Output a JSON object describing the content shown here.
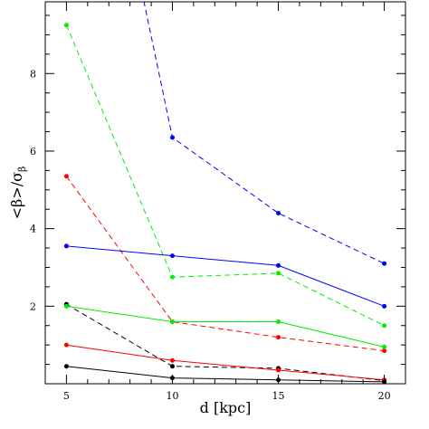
{
  "chart_data": {
    "type": "line",
    "xlabel": "d [kpc]",
    "ylabel": "<β>/σ_β",
    "xlim": [
      4,
      21
    ],
    "ylim": [
      0,
      9.85
    ],
    "x_ticks": [
      5,
      10,
      15,
      20
    ],
    "x_tick_labels": [
      "5",
      "10",
      "15",
      "20"
    ],
    "y_ticks": [
      2,
      4,
      6,
      8
    ],
    "y_tick_labels": [
      "2",
      "4",
      "6",
      "8"
    ],
    "grid": false,
    "legend": "none",
    "x": [
      5,
      10,
      15,
      20
    ],
    "series": [
      {
        "color": "#0000ff",
        "style": "dashed",
        "values": [
          null,
          6.35,
          4.4,
          3.1
        ],
        "extends_above": true
      },
      {
        "color": "#00ee00",
        "style": "dashed",
        "values": [
          9.25,
          2.75,
          2.85,
          1.5
        ]
      },
      {
        "color": "#ff0000",
        "style": "dashed",
        "values": [
          5.35,
          1.6,
          1.2,
          0.85
        ]
      },
      {
        "color": "#000000",
        "style": "dashed",
        "values": [
          2.05,
          0.45,
          0.4,
          0.08
        ]
      },
      {
        "color": "#0000ff",
        "style": "solid",
        "values": [
          3.55,
          3.3,
          3.05,
          2.0
        ]
      },
      {
        "color": "#00ee00",
        "style": "solid",
        "values": [
          2.0,
          1.6,
          1.6,
          0.95
        ]
      },
      {
        "color": "#ff0000",
        "style": "solid",
        "values": [
          1.0,
          0.6,
          0.35,
          0.1
        ]
      },
      {
        "color": "#000000",
        "style": "solid",
        "values": [
          0.45,
          0.15,
          0.1,
          0.05
        ]
      }
    ]
  }
}
